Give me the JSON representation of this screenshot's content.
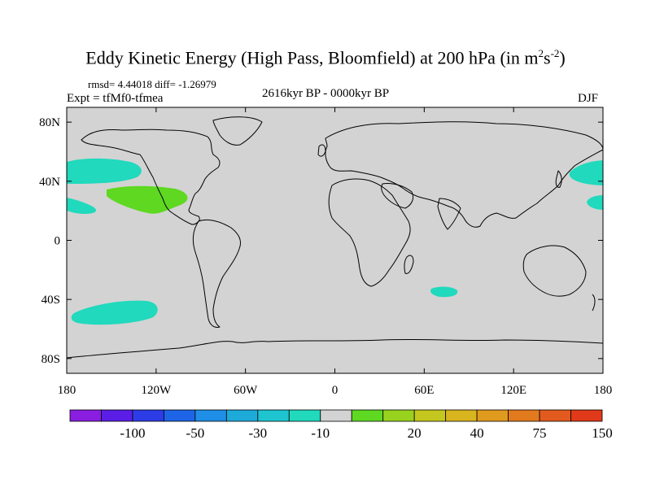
{
  "title": {
    "main": "Eddy Kinetic Energy (High Pass, Bloomfield) at 200 hPa (in m",
    "sup1": "2",
    "mid": "s",
    "sup2": "-2",
    "end": ")"
  },
  "stats_line": "rmsd= 4.44018 diff= -1.26979",
  "experiment_line": "Expt = tfMf0-tfmea",
  "period_label": "2616kyr BP - 0000kyr BP",
  "season_label": "DJF",
  "map": {
    "projection": "cylindrical-equidistant",
    "lon_range": [
      -180,
      180
    ],
    "lat_range": [
      -90,
      90
    ],
    "background_color": "#d3d3d3",
    "x_tick_labels": [
      "180",
      "120W",
      "60W",
      "0",
      "60E",
      "120E",
      "180"
    ],
    "x_tick_values": [
      -180,
      -120,
      -60,
      0,
      60,
      120,
      180
    ],
    "y_tick_labels": [
      "80N",
      "40N",
      "0",
      "40S",
      "80S"
    ],
    "y_tick_values": [
      80,
      40,
      0,
      -40,
      -80
    ],
    "anomaly_regions": [
      {
        "name": "north-pacific-west",
        "color": "#21d9bd",
        "level": "-10",
        "center_lon": -165,
        "center_lat": 47
      },
      {
        "name": "north-pacific-central",
        "color": "#5ed821",
        "level": "20",
        "center_lon": -120,
        "center_lat": 30
      },
      {
        "name": "subtropical-pacific-west",
        "color": "#21d9bd",
        "level": "-10",
        "center_lon": -173,
        "center_lat": 24
      },
      {
        "name": "south-pacific",
        "color": "#21d9bd",
        "level": "-10",
        "center_lon": -133,
        "center_lat": -48
      },
      {
        "name": "south-indian-ocean",
        "color": "#21d9bd",
        "level": "-10",
        "center_lon": 71,
        "center_lat": -35
      },
      {
        "name": "northwest-pacific",
        "color": "#21d9bd",
        "level": "-10",
        "center_lon": 170,
        "center_lat": 47
      },
      {
        "name": "subtropical-pacific-east",
        "color": "#21d9bd",
        "level": "-10",
        "center_lon": 176,
        "center_lat": 27
      }
    ]
  },
  "colorbar": {
    "colors": [
      "#8a1ee0",
      "#5a1ee6",
      "#2c3ce6",
      "#1e64e6",
      "#1e8ee6",
      "#1eaad9",
      "#1ec4d0",
      "#21d9bd",
      "#d3d3d3",
      "#5ed821",
      "#98d21e",
      "#c4c81e",
      "#d8b41e",
      "#e09a1e",
      "#e27a1e",
      "#e25a1e",
      "#e03a1a"
    ],
    "labels": [
      "-100",
      "-50",
      "-30",
      "-10",
      "20",
      "40",
      "75",
      "150"
    ]
  }
}
